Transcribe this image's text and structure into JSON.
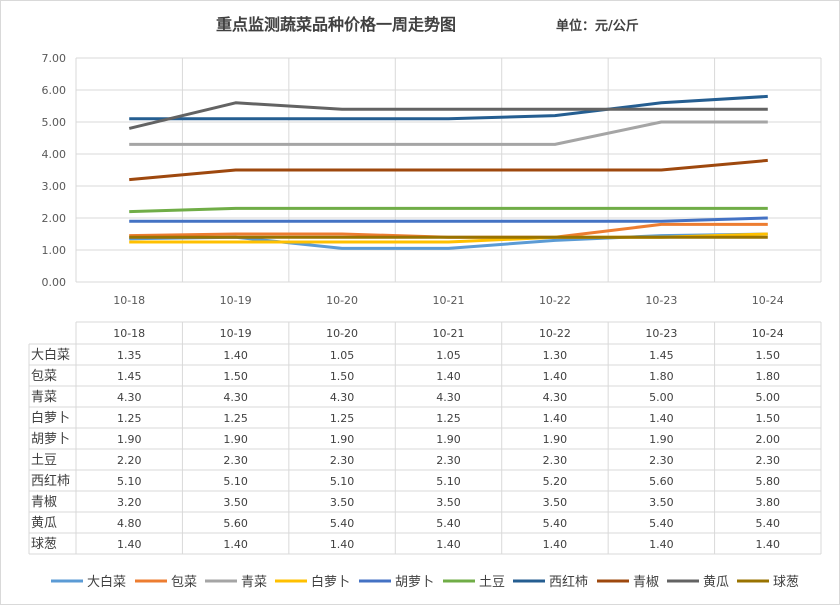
{
  "chart_data": {
    "type": "line",
    "title": "重点监测蔬菜品种价格一周走势图",
    "unit_label": "单位：元/公斤",
    "xlabel": "",
    "ylabel": "",
    "ylim": [
      0,
      7
    ],
    "yticks": [
      "0.00",
      "1.00",
      "2.00",
      "3.00",
      "4.00",
      "5.00",
      "6.00",
      "7.00"
    ],
    "grid": true,
    "legend_position": "bottom",
    "categories": [
      "10-18",
      "10-19",
      "10-20",
      "10-21",
      "10-22",
      "10-23",
      "10-24"
    ],
    "series": [
      {
        "name": "大白菜",
        "color": "#5b9bd5",
        "values": [
          1.35,
          1.4,
          1.05,
          1.05,
          1.3,
          1.45,
          1.5
        ]
      },
      {
        "name": "包菜",
        "color": "#ed7d31",
        "values": [
          1.45,
          1.5,
          1.5,
          1.4,
          1.4,
          1.8,
          1.8
        ]
      },
      {
        "name": "青菜",
        "color": "#a5a5a5",
        "values": [
          4.3,
          4.3,
          4.3,
          4.3,
          4.3,
          5.0,
          5.0
        ]
      },
      {
        "name": "白萝卜",
        "color": "#ffc000",
        "values": [
          1.25,
          1.25,
          1.25,
          1.25,
          1.4,
          1.4,
          1.5
        ]
      },
      {
        "name": "胡萝卜",
        "color": "#4472c4",
        "values": [
          1.9,
          1.9,
          1.9,
          1.9,
          1.9,
          1.9,
          2.0
        ]
      },
      {
        "name": "土豆",
        "color": "#70ad47",
        "values": [
          2.2,
          2.3,
          2.3,
          2.3,
          2.3,
          2.3,
          2.3
        ]
      },
      {
        "name": "西红柿",
        "color": "#255e91",
        "values": [
          5.1,
          5.1,
          5.1,
          5.1,
          5.2,
          5.6,
          5.8
        ]
      },
      {
        "name": "青椒",
        "color": "#9e480e",
        "values": [
          3.2,
          3.5,
          3.5,
          3.5,
          3.5,
          3.5,
          3.8
        ]
      },
      {
        "name": "黄瓜",
        "color": "#636363",
        "values": [
          4.8,
          5.6,
          5.4,
          5.4,
          5.4,
          5.4,
          5.4
        ]
      },
      {
        "name": "球葱",
        "color": "#997300",
        "values": [
          1.4,
          1.4,
          1.4,
          1.4,
          1.4,
          1.4,
          1.4
        ]
      }
    ]
  }
}
